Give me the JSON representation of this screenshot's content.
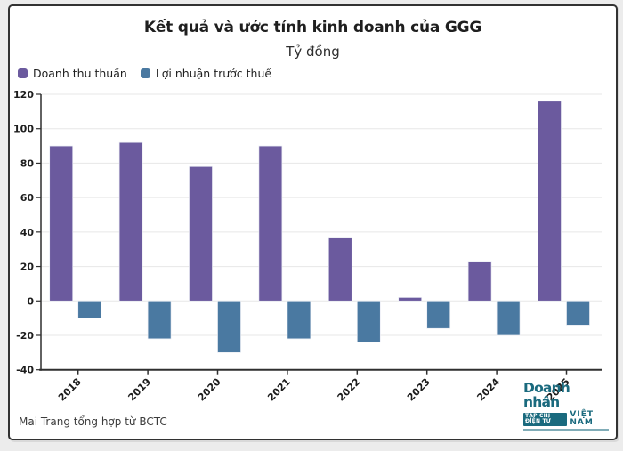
{
  "header": {
    "title": "Kết quả và ước tính kinh doanh của GGG",
    "subtitle": "Tỷ đồng"
  },
  "chart_data": {
    "type": "bar",
    "title": "Kết quả và ước tính kinh doanh của GGG",
    "unit": "Tỷ đồng",
    "categories": [
      "2018",
      "2019",
      "2020",
      "2021",
      "2022",
      "2023",
      "2024",
      "2025"
    ],
    "series": [
      {
        "name": "Doanh thu thuần",
        "color": "#6b5a9e",
        "values": [
          90,
          92,
          78,
          90,
          37,
          2,
          23,
          116
        ]
      },
      {
        "name": "Lợi nhuận trước thuế",
        "color": "#4a79a1",
        "values": [
          -10,
          -22,
          -30,
          -22,
          -24,
          -16,
          -20,
          -14
        ]
      }
    ],
    "ylim": [
      -40,
      120
    ],
    "ytick_step": 20,
    "grid": true,
    "legend_position": "top-left",
    "xlabel": "",
    "ylabel": ""
  },
  "style_colors": {
    "grid": "#e7e7e7",
    "axis": "#2f2f2f",
    "tick_text": "#1d1d1d"
  },
  "footer": {
    "credit": "Mai Trang tổng hợp từ BCTC",
    "logo": {
      "main": "Doanh nhân",
      "badge": "TẠP CHÍ ĐIỆN TỬ",
      "country": "VIỆT NAM",
      "color": "#1a6a7e"
    }
  }
}
